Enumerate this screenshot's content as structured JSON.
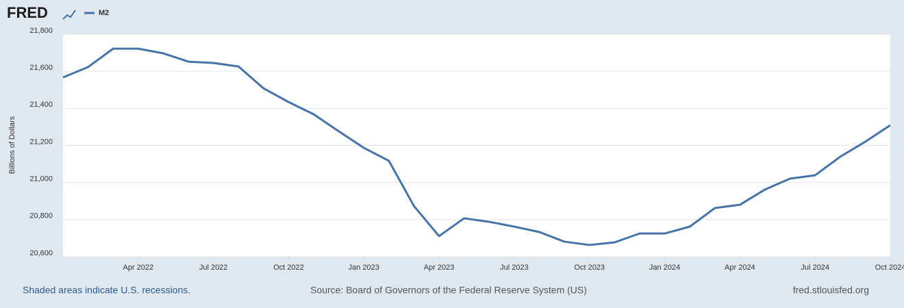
{
  "logo": "FRED",
  "chart_data": {
    "type": "line",
    "y_label": "Billions of Dollars",
    "x": [
      "2022-01",
      "2022-02",
      "2022-03",
      "2022-04",
      "2022-05",
      "2022-06",
      "2022-07",
      "2022-08",
      "2022-09",
      "2022-10",
      "2022-11",
      "2022-12",
      "2023-01",
      "2023-02",
      "2023-03",
      "2023-04",
      "2023-05",
      "2023-06",
      "2023-07",
      "2023-08",
      "2023-09",
      "2023-10",
      "2023-11",
      "2023-12",
      "2024-01",
      "2024-02",
      "2024-03",
      "2024-04",
      "2024-05",
      "2024-06",
      "2024-07",
      "2024-08",
      "2024-09",
      "2024-10"
    ],
    "series": [
      {
        "name": "M2",
        "color": "#4572a7",
        "values": [
          21567,
          21623,
          21722,
          21722,
          21697,
          21652,
          21645,
          21626,
          21508,
          21434,
          21368,
          21276,
          21187,
          21117,
          20873,
          20711,
          20807,
          20788,
          20762,
          20733,
          20681,
          20663,
          20677,
          20725,
          20725,
          20762,
          20862,
          20880,
          20962,
          21021,
          21039,
          21139,
          21220,
          21309
        ]
      }
    ],
    "xlim": [
      "2022-01",
      "2024-10"
    ],
    "xticks": [
      {
        "value": "2022-04",
        "label": "Apr 2022"
      },
      {
        "value": "2022-07",
        "label": "Jul 2022"
      },
      {
        "value": "2022-10",
        "label": "Oct 2022"
      },
      {
        "value": "2023-01",
        "label": "Jan 2023"
      },
      {
        "value": "2023-04",
        "label": "Apr 2023"
      },
      {
        "value": "2023-07",
        "label": "Jul 2023"
      },
      {
        "value": "2023-10",
        "label": "Oct 2023"
      },
      {
        "value": "2024-01",
        "label": "Jan 2024"
      },
      {
        "value": "2024-04",
        "label": "Apr 2024"
      },
      {
        "value": "2024-07",
        "label": "Jul 2024"
      },
      {
        "value": "2024-10",
        "label": "Oct 2024"
      }
    ],
    "ylim": [
      20600,
      21800
    ],
    "yticks": [
      {
        "value": 20600,
        "label": "20,600"
      },
      {
        "value": 20800,
        "label": "20,800"
      },
      {
        "value": 21000,
        "label": "21,000"
      },
      {
        "value": 21200,
        "label": "21,200"
      },
      {
        "value": 21400,
        "label": "21,400"
      },
      {
        "value": 21600,
        "label": "21,600"
      },
      {
        "value": 21800,
        "label": "21,800"
      }
    ],
    "grid": true
  },
  "footer": {
    "note": "Shaded areas indicate U.S. recessions.",
    "source": "Source: Board of Governors of the Federal Reserve System (US)",
    "site": "fred.stlouisfed.org"
  }
}
